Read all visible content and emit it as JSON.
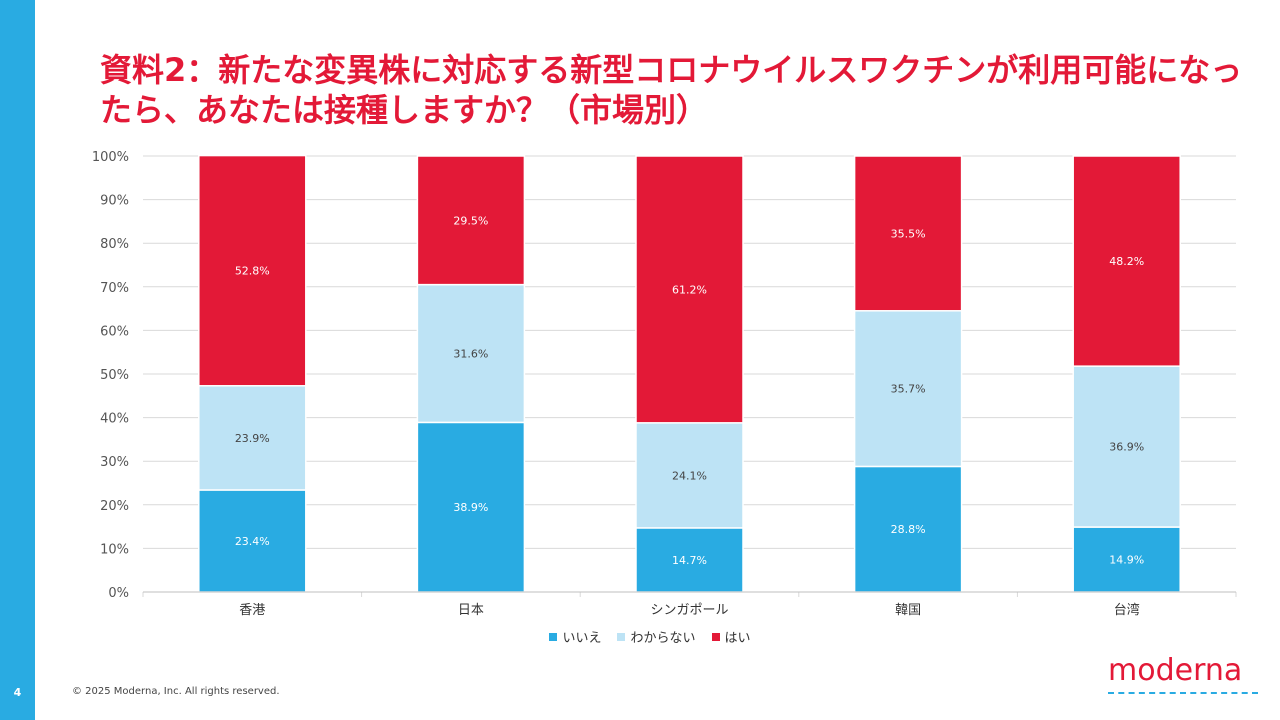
{
  "slide": {
    "title": "資料2：新たな変異株に対応する新型コロナウイルスワクチンが利用可能になったら、あなたは接種しますか？（市場別）",
    "page_number": "4",
    "copyright": "© 2025 Moderna, Inc. All rights reserved.",
    "logo_text": "moderna"
  },
  "colors": {
    "accent_blue": "#29abe2",
    "light_blue": "#bde3f5",
    "brand_red": "#e31937"
  },
  "chart_data": {
    "type": "bar",
    "stacked": true,
    "title": "",
    "xlabel": "",
    "ylabel": "",
    "ylim": [
      0,
      100
    ],
    "y_ticks": [
      "0%",
      "10%",
      "20%",
      "30%",
      "40%",
      "50%",
      "60%",
      "70%",
      "80%",
      "90%",
      "100%"
    ],
    "categories": [
      "香港",
      "日本",
      "シンガポール",
      "韓国",
      "台湾"
    ],
    "series": [
      {
        "name": "いいえ",
        "color": "#29abe2",
        "values": [
          23.4,
          38.9,
          14.7,
          28.8,
          14.9
        ],
        "labels": [
          "23.4%",
          "38.9%",
          "14.7%",
          "28.8%",
          "14.9%"
        ]
      },
      {
        "name": "わからない",
        "color": "#bde3f5",
        "values": [
          23.9,
          31.6,
          24.1,
          35.7,
          36.9
        ],
        "labels": [
          "23.9%",
          "31.6%",
          "24.1%",
          "35.7%",
          "36.9%"
        ]
      },
      {
        "name": "はい",
        "color": "#e31937",
        "values": [
          52.8,
          29.5,
          61.2,
          35.5,
          48.2
        ],
        "labels": [
          "52.8%",
          "29.5%",
          "61.2%",
          "35.5%",
          "48.2%"
        ]
      }
    ],
    "legend_position": "bottom",
    "grid": true
  }
}
